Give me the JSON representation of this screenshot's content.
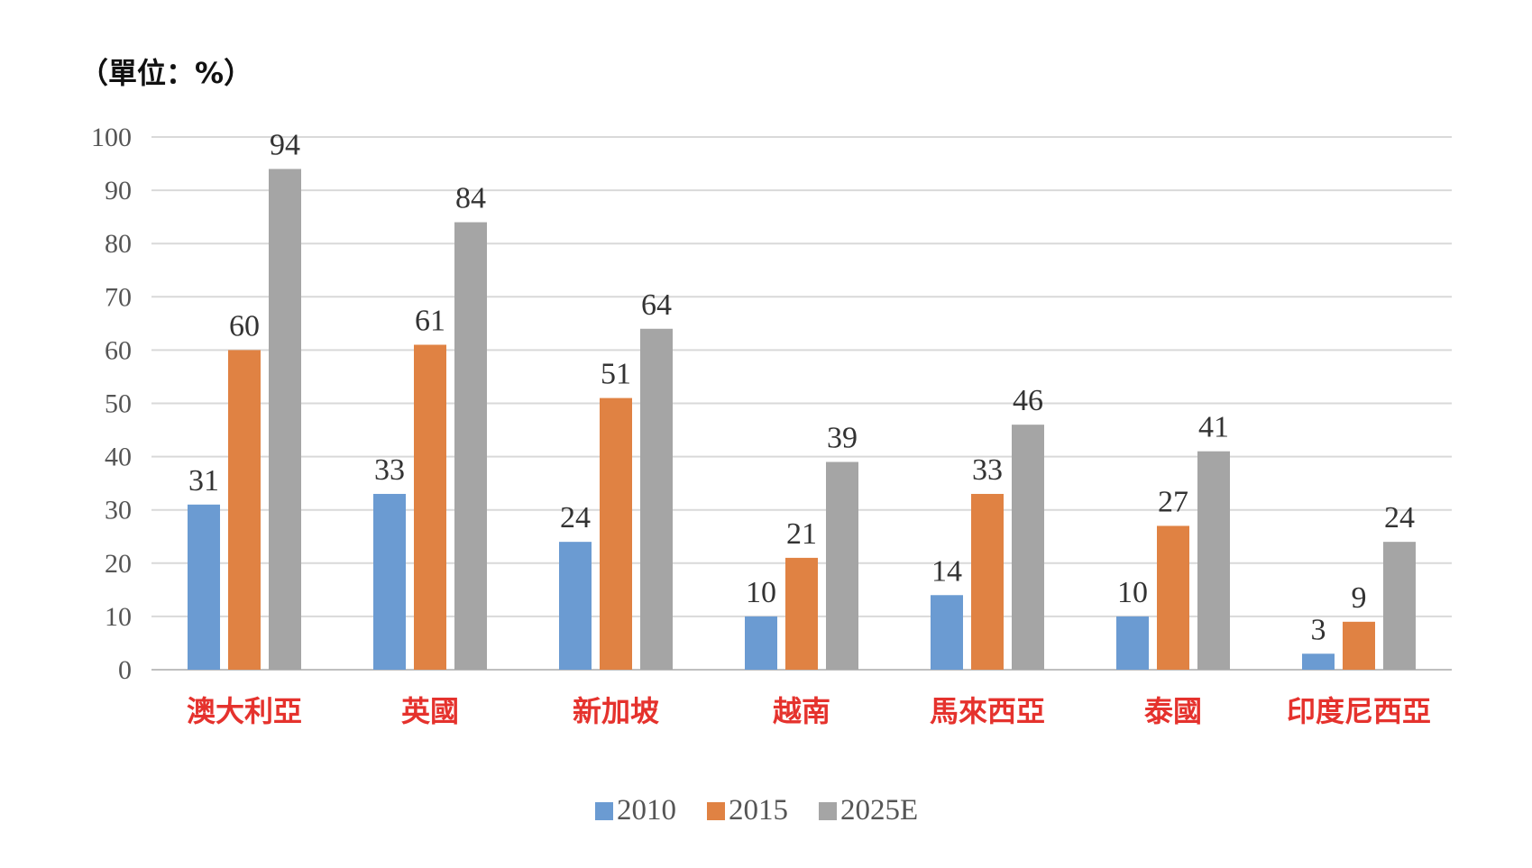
{
  "unit_label": "（單位：%）",
  "colors": {
    "series": [
      "#6b9bd2",
      "#e08243",
      "#a5a5a5"
    ],
    "category_text": "#e5322d",
    "gridline": "#d9d9d9",
    "axis": "#bfbfbf"
  },
  "chart_data": {
    "type": "bar",
    "title": "",
    "xlabel": "",
    "ylabel": "（單位：%）",
    "ylim": [
      0,
      100
    ],
    "yticks": [
      0,
      10,
      20,
      30,
      40,
      50,
      60,
      70,
      80,
      90,
      100
    ],
    "categories": [
      "澳大利亞",
      "英國",
      "新加坡",
      "越南",
      "馬來西亞",
      "泰國",
      "印度尼西亞"
    ],
    "series": [
      {
        "name": "2010",
        "values": [
          31,
          33,
          24,
          10,
          14,
          10,
          3
        ]
      },
      {
        "name": "2015",
        "values": [
          60,
          61,
          51,
          21,
          33,
          27,
          9
        ]
      },
      {
        "name": "2025E",
        "values": [
          94,
          84,
          64,
          39,
          46,
          41,
          24
        ]
      }
    ],
    "grid": true,
    "legend_position": "bottom"
  }
}
